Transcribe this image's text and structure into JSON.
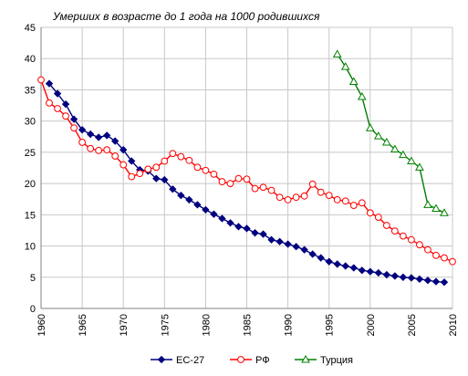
{
  "chart_data": {
    "type": "line",
    "title": "Умерших в возрасте до 1 года на 1000 родившихся",
    "xlabel": "",
    "ylabel": "",
    "xlim": [
      1960,
      2010
    ],
    "ylim": [
      0,
      45
    ],
    "x_ticks": [
      "1960",
      "1965",
      "1970",
      "1975",
      "1980",
      "1985",
      "1990",
      "1995",
      "2000",
      "2005",
      "2010"
    ],
    "y_ticks": [
      "0",
      "5",
      "10",
      "15",
      "20",
      "25",
      "30",
      "35",
      "40",
      "45"
    ],
    "grid": true,
    "legend_position": "bottom",
    "series": [
      {
        "name": "ЕС-27",
        "color": "#00007f",
        "marker": "diamond-filled",
        "points": [
          [
            1961,
            36.0
          ],
          [
            1962,
            34.4
          ],
          [
            1963,
            32.7
          ],
          [
            1964,
            30.3
          ],
          [
            1965,
            28.6
          ],
          [
            1966,
            27.9
          ],
          [
            1967,
            27.4
          ],
          [
            1968,
            27.7
          ],
          [
            1969,
            26.8
          ],
          [
            1970,
            25.4
          ],
          [
            1971,
            23.6
          ],
          [
            1972,
            22.2
          ],
          [
            1973,
            22.0
          ],
          [
            1974,
            20.8
          ],
          [
            1975,
            20.6
          ],
          [
            1976,
            19.1
          ],
          [
            1977,
            18.1
          ],
          [
            1978,
            17.4
          ],
          [
            1979,
            16.6
          ],
          [
            1980,
            15.8
          ],
          [
            1981,
            15.1
          ],
          [
            1982,
            14.4
          ],
          [
            1983,
            13.7
          ],
          [
            1984,
            13.1
          ],
          [
            1985,
            12.8
          ],
          [
            1986,
            12.1
          ],
          [
            1987,
            11.9
          ],
          [
            1988,
            11.0
          ],
          [
            1989,
            10.7
          ],
          [
            1990,
            10.3
          ],
          [
            1991,
            9.9
          ],
          [
            1992,
            9.4
          ],
          [
            1993,
            8.7
          ],
          [
            1994,
            8.1
          ],
          [
            1995,
            7.5
          ],
          [
            1996,
            7.1
          ],
          [
            1997,
            6.8
          ],
          [
            1998,
            6.5
          ],
          [
            1999,
            6.1
          ],
          [
            2000,
            5.9
          ],
          [
            2001,
            5.7
          ],
          [
            2002,
            5.4
          ],
          [
            2003,
            5.2
          ],
          [
            2004,
            5.0
          ],
          [
            2005,
            4.9
          ],
          [
            2006,
            4.7
          ],
          [
            2007,
            4.5
          ],
          [
            2008,
            4.3
          ],
          [
            2009,
            4.2
          ]
        ]
      },
      {
        "name": "РФ",
        "color": "#ff0000",
        "marker": "circle-open",
        "points": [
          [
            1960,
            36.6
          ],
          [
            1961,
            32.9
          ],
          [
            1962,
            32.0
          ],
          [
            1963,
            30.8
          ],
          [
            1964,
            28.9
          ],
          [
            1965,
            26.6
          ],
          [
            1966,
            25.6
          ],
          [
            1967,
            25.3
          ],
          [
            1968,
            25.4
          ],
          [
            1969,
            24.4
          ],
          [
            1970,
            23.0
          ],
          [
            1971,
            21.1
          ],
          [
            1972,
            21.6
          ],
          [
            1973,
            22.3
          ],
          [
            1974,
            22.6
          ],
          [
            1975,
            23.6
          ],
          [
            1976,
            24.8
          ],
          [
            1977,
            24.3
          ],
          [
            1978,
            23.7
          ],
          [
            1979,
            22.6
          ],
          [
            1980,
            22.1
          ],
          [
            1981,
            21.5
          ],
          [
            1982,
            20.3
          ],
          [
            1983,
            20.0
          ],
          [
            1984,
            20.8
          ],
          [
            1985,
            20.7
          ],
          [
            1986,
            19.2
          ],
          [
            1987,
            19.4
          ],
          [
            1988,
            18.9
          ],
          [
            1989,
            17.8
          ],
          [
            1990,
            17.4
          ],
          [
            1991,
            17.8
          ],
          [
            1992,
            18.0
          ],
          [
            1993,
            19.9
          ],
          [
            1994,
            18.6
          ],
          [
            1995,
            18.1
          ],
          [
            1996,
            17.4
          ],
          [
            1997,
            17.2
          ],
          [
            1998,
            16.5
          ],
          [
            1999,
            16.9
          ],
          [
            2000,
            15.3
          ],
          [
            2001,
            14.6
          ],
          [
            2002,
            13.3
          ],
          [
            2003,
            12.4
          ],
          [
            2004,
            11.6
          ],
          [
            2005,
            11.0
          ],
          [
            2006,
            10.2
          ],
          [
            2007,
            9.4
          ],
          [
            2008,
            8.5
          ],
          [
            2009,
            8.1
          ],
          [
            2010,
            7.5
          ]
        ]
      },
      {
        "name": "Турция",
        "color": "#008000",
        "marker": "triangle-open",
        "points": [
          [
            1996,
            40.7
          ],
          [
            1997,
            38.7
          ],
          [
            1998,
            36.3
          ],
          [
            1999,
            33.9
          ],
          [
            2000,
            28.9
          ],
          [
            2001,
            27.6
          ],
          [
            2002,
            26.6
          ],
          [
            2003,
            25.5
          ],
          [
            2004,
            24.6
          ],
          [
            2005,
            23.6
          ],
          [
            2006,
            22.6
          ],
          [
            2007,
            16.6
          ],
          [
            2008,
            16.0
          ],
          [
            2009,
            15.3
          ]
        ]
      }
    ]
  }
}
